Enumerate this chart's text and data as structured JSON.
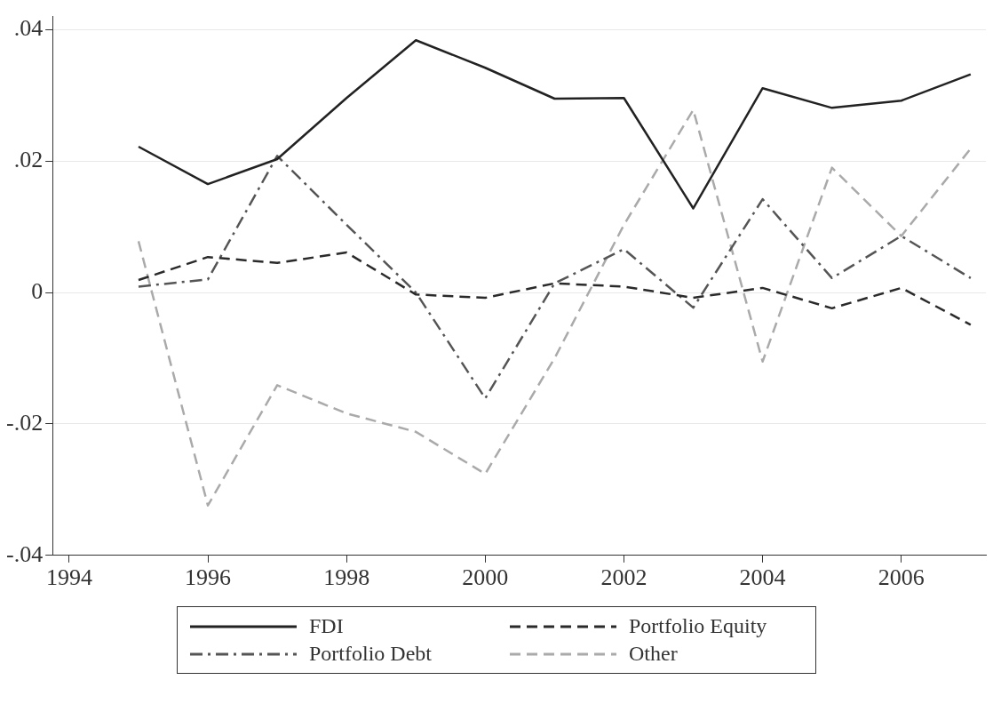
{
  "chart_data": {
    "type": "line",
    "x": [
      1995,
      1996,
      1997,
      1998,
      1999,
      2000,
      2001,
      2002,
      2003,
      2004,
      2005,
      2006,
      2007
    ],
    "series": [
      {
        "name": "FDI",
        "color": "#222222",
        "line_style": "solid",
        "values": [
          0.0222,
          0.0165,
          0.0203,
          0.0296,
          0.0384,
          0.0342,
          0.0295,
          0.0296,
          0.0128,
          0.0311,
          0.0281,
          0.0292,
          0.0332
        ]
      },
      {
        "name": "Portfolio Equity",
        "color": "#2a2a2a",
        "line_style": "dashed",
        "values": [
          0.0019,
          0.0054,
          0.0045,
          0.0061,
          -0.0003,
          -0.0008,
          0.0014,
          0.0009,
          -0.0008,
          0.0007,
          -0.0024,
          0.0007,
          -0.0049
        ]
      },
      {
        "name": "Portfolio Debt",
        "color": "#555555",
        "line_style": "dashdot",
        "values": [
          0.0009,
          0.002,
          0.0208,
          0.0103,
          0.0,
          -0.0161,
          0.0014,
          0.0066,
          -0.0023,
          0.0142,
          0.0022,
          0.0086,
          0.0022
        ]
      },
      {
        "name": "Other",
        "color": "#aaaaaa",
        "line_style": "dashed",
        "values": [
          0.0078,
          -0.0324,
          -0.0141,
          -0.0184,
          -0.0212,
          -0.0276,
          -0.01,
          0.0103,
          0.0278,
          -0.0105,
          0.019,
          0.0086,
          0.0219
        ]
      }
    ],
    "xlim": [
      1993.76,
      2007.22
    ],
    "xticks": [
      1994,
      1996,
      1998,
      2000,
      2002,
      2004,
      2006
    ],
    "ylim": [
      -0.04,
      0.042
    ],
    "yticks": [
      {
        "value": -0.04,
        "label": "-.04"
      },
      {
        "value": -0.02,
        "label": "-.02"
      },
      {
        "value": 0,
        "label": "0"
      },
      {
        "value": 0.02,
        "label": ".02"
      },
      {
        "value": 0.04,
        "label": ".04"
      }
    ],
    "grid": "y",
    "legend": "bottom",
    "marker": "none"
  }
}
